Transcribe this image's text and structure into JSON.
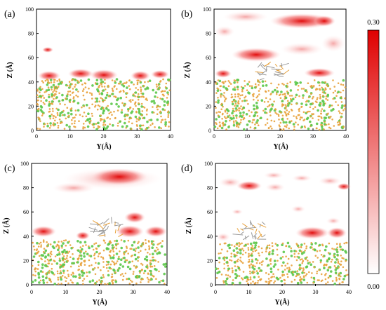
{
  "figure": {
    "panels": [
      {
        "label": "(a)",
        "xlabel": "Y(Å)",
        "ylabel": "Z (Å)",
        "xticks": [
          "0",
          "10",
          "20",
          "30",
          "40"
        ],
        "yticks": [
          "0",
          "20",
          "40",
          "60",
          "80",
          "100"
        ]
      },
      {
        "label": "(b)",
        "xlabel": "Y(Å)",
        "ylabel": "Z (Å)",
        "xticks": [
          "0",
          "10",
          "20",
          "30",
          "40"
        ],
        "yticks": [
          "0",
          "20",
          "40",
          "60",
          "80",
          "100"
        ]
      },
      {
        "label": "(c)",
        "xlabel": "Y(Å)",
        "ylabel": "Z (Å)",
        "xticks": [
          "0",
          "10",
          "20",
          "30",
          "40"
        ],
        "yticks": [
          "0",
          "20",
          "40",
          "60",
          "80",
          "100"
        ]
      },
      {
        "label": "(d)",
        "xlabel": "Y(Å)",
        "ylabel": "Z (Å)",
        "xticks": [
          "0",
          "10",
          "20",
          "30",
          "40"
        ],
        "yticks": [
          "0",
          "20",
          "40",
          "60",
          "80",
          "100"
        ]
      }
    ],
    "colorbar": {
      "max_label": "0.30",
      "min_label": "0.00"
    },
    "colors": {
      "density_high": "#e00000",
      "density_low": "#ffffff",
      "atom_orange": "#e8a23c",
      "atom_green": "#5cc84a",
      "atom_grey": "#9a9a9a"
    }
  }
}
